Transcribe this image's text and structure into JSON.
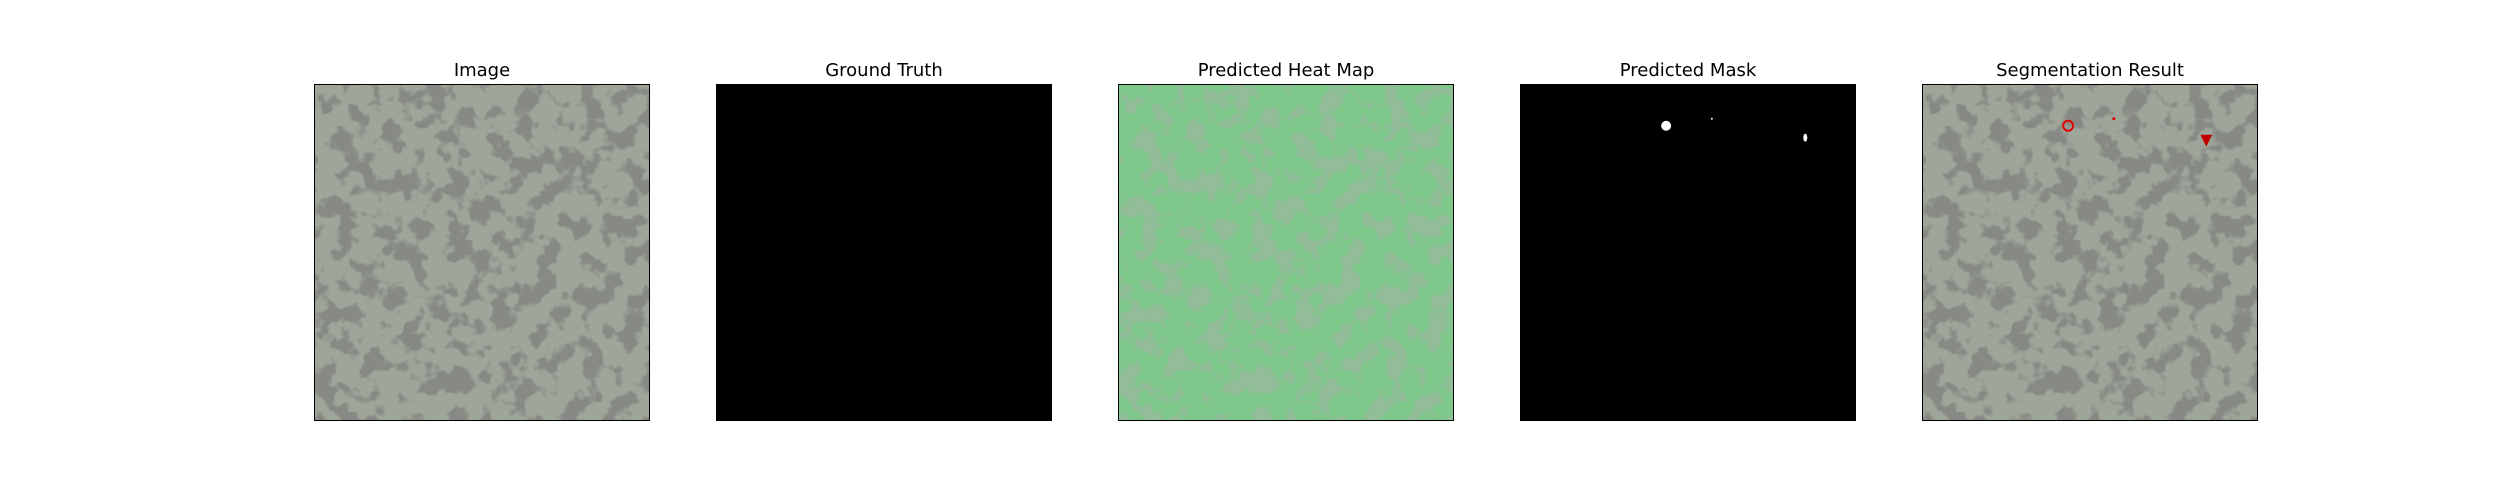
{
  "figure": {
    "panels": [
      {
        "title": "Image",
        "kind": "texture-gray",
        "base_color": "#9ea69a",
        "spot_color": "#3d3f3b"
      },
      {
        "title": "Ground Truth",
        "kind": "black",
        "base_color": "#000000"
      },
      {
        "title": "Predicted Heat Map",
        "kind": "texture-green",
        "base_color": "#7fc88c",
        "spot_color": "#4a7f51"
      },
      {
        "title": "Predicted Mask",
        "kind": "mask",
        "base_color": "#000000",
        "spot_color": "#ffffff"
      },
      {
        "title": "Segmentation Result",
        "kind": "texture-gray-overlay",
        "base_color": "#9ea69a",
        "spot_color": "#3d3f3b",
        "overlay_color": "#e00000"
      }
    ]
  }
}
